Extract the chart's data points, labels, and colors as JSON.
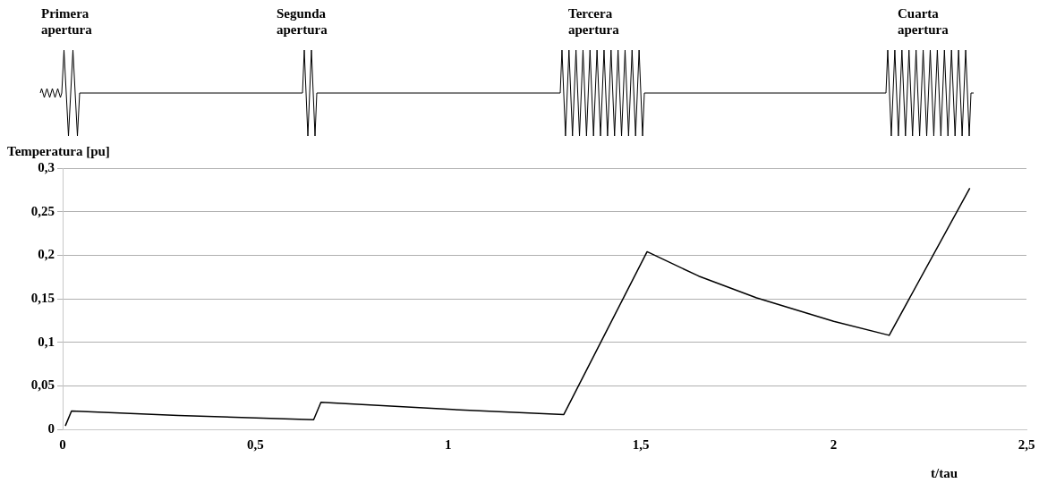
{
  "chart_data": {
    "type": "line",
    "xlabel": "t/tau",
    "ylabel": "Temperatura [pu]",
    "annotations": [
      "Primera\napertura",
      "Segunda\napertura",
      "Tercera\napertura",
      "Cuarta\napertura"
    ],
    "series": [
      {
        "color": "#000000",
        "x": [
          0.007,
          0.023,
          0.3,
          0.651,
          0.67,
          1.0,
          1.3,
          1.516,
          1.65,
          1.8,
          2.0,
          2.144,
          2.353
        ],
        "values": [
          0.004,
          0.021,
          0.016,
          0.011,
          0.031,
          0.023,
          0.017,
          0.204,
          0.176,
          0.151,
          0.124,
          0.108,
          0.277
        ]
      }
    ],
    "xlim": [
      0,
      2.5
    ],
    "xticks": [
      {
        "value": 0,
        "label": "0"
      },
      {
        "value": 0.5,
        "label": "0,5"
      },
      {
        "value": 1,
        "label": "1"
      },
      {
        "value": 1.5,
        "label": "1,5"
      },
      {
        "value": 2,
        "label": "2"
      },
      {
        "value": 2.5,
        "label": "2,5"
      }
    ],
    "ylim": [
      0,
      0.3
    ],
    "yticks": [
      {
        "value": 0,
        "label": "0"
      },
      {
        "value": 0.05,
        "label": "0,05"
      },
      {
        "value": 0.1,
        "label": "0,1"
      },
      {
        "value": 0.15,
        "label": "0,15"
      },
      {
        "value": 0.2,
        "label": "0,2"
      },
      {
        "value": 0.25,
        "label": "0,25"
      },
      {
        "value": 0.3,
        "label": "0,3"
      }
    ],
    "grid": "y",
    "legend": false,
    "marker": "none",
    "line_style": "solid"
  }
}
